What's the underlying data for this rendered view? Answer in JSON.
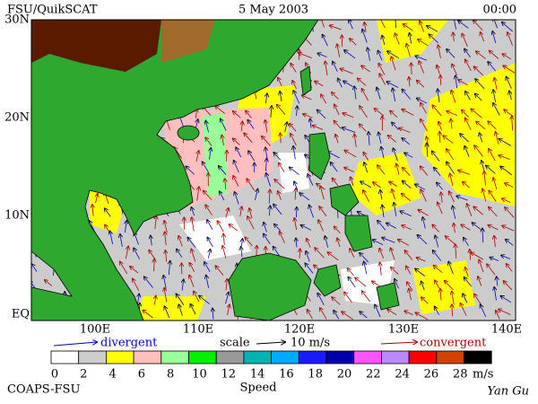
{
  "header": {
    "source": "FSU/QuikSCAT",
    "date": "5 May 2003",
    "time": "00:00"
  },
  "map": {
    "lat_labels": [
      "30N",
      "20N",
      "10N",
      "EQ"
    ],
    "lon_labels": [
      "100E",
      "110E",
      "120E",
      "130E",
      "140E"
    ]
  },
  "legend": {
    "divergent": "divergent",
    "scale": "scale",
    "scale_value": "10 m/s",
    "convergent": "convergent"
  },
  "colorbar": {
    "colors": [
      "#ffffff",
      "#cccccc",
      "#ffff00",
      "#ffbfbf",
      "#99ff99",
      "#00ee00",
      "#999999",
      "#00b3b3",
      "#00aaff",
      "#1a1aff",
      "#0000aa",
      "#ff55ff",
      "#bb88ff",
      "#ff0000",
      "#cc4400",
      "#000000"
    ],
    "labels": [
      0,
      2,
      4,
      6,
      8,
      10,
      12,
      14,
      16,
      18,
      20,
      22,
      24,
      26,
      28
    ],
    "unit": "m/s",
    "title": "Speed"
  },
  "footer": {
    "left": "COAPS-FSU",
    "right": "Yan Gu"
  }
}
